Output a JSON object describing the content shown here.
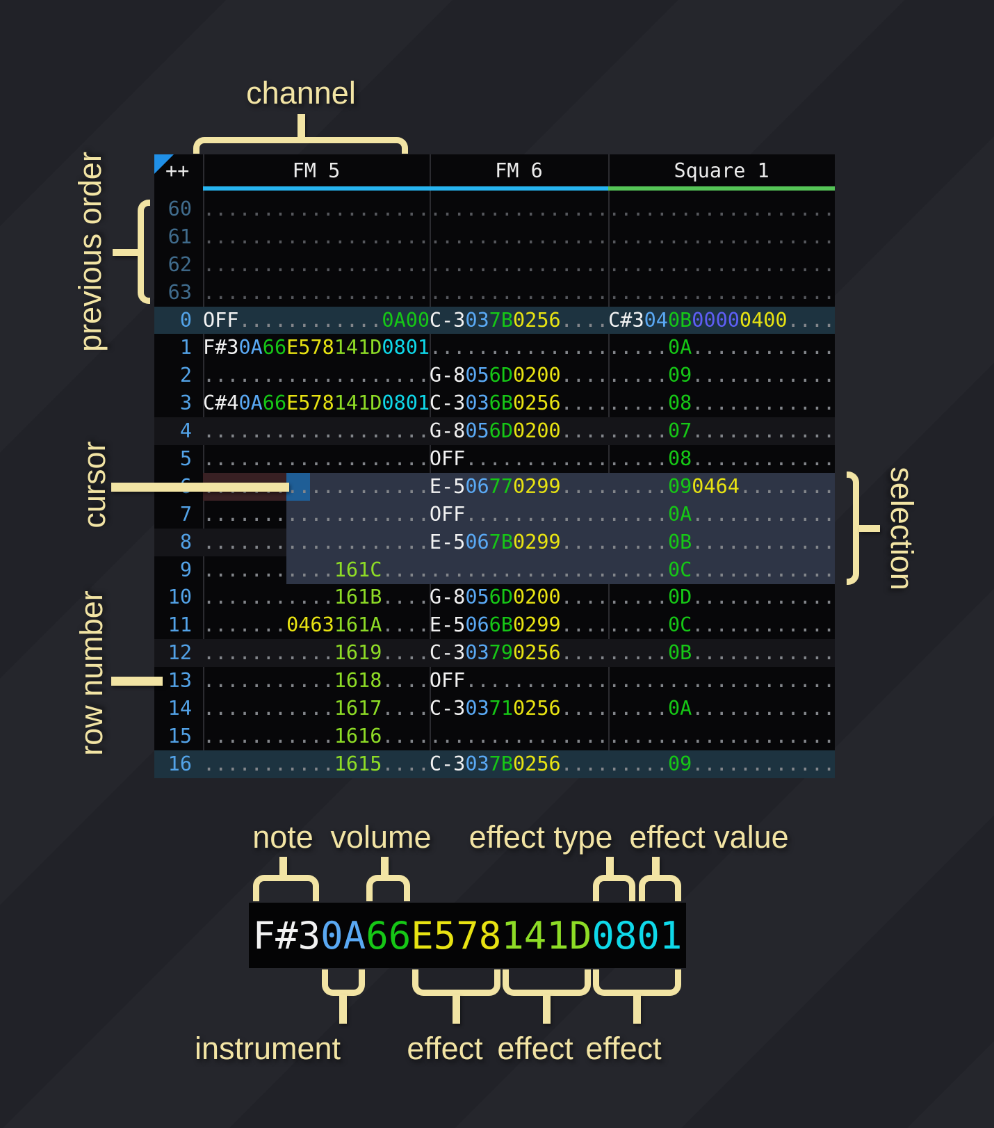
{
  "annotations": {
    "channel": "channel",
    "previous_order": "previous order",
    "cursor": "cursor",
    "row_number": "row number",
    "selection": "selection"
  },
  "header": {
    "corner": "++",
    "channels": [
      {
        "name": "FM 5",
        "underline": "#27b4f0"
      },
      {
        "name": "FM 6",
        "underline": "#27b4f0"
      },
      {
        "name": "Square 1",
        "underline": "#55c457"
      }
    ]
  },
  "colors": {
    "khaki": "#f2e4a4",
    "note": "#f2f2f2",
    "ins": "#5aa9f4",
    "vol": "#16c716",
    "pitch": "#e8e312",
    "chip": "#8edc26",
    "pan": "#0fd9ea",
    "arp": "#5e5ef6",
    "dot": "#83868b",
    "dim": "#56585d",
    "rownum": "#53a3e8",
    "rownum_prev": "#406c8d",
    "selection_bg": "#2e3546",
    "cursor_row_bg": "#382023",
    "cursor_bg": "#1f5e96",
    "hl4_bg": "#151519",
    "hl16_bg": "#1d3340"
  },
  "pattern": {
    "rows": [
      {
        "n": "60",
        "cls": "prev",
        "c": [
          [
            [
              "...................",
              "dim"
            ]
          ],
          [
            [
              "...............",
              "dim"
            ]
          ],
          [
            [
              "...................",
              "dim"
            ]
          ]
        ]
      },
      {
        "n": "61",
        "cls": "prev",
        "c": [
          [
            [
              "...................",
              "dim"
            ]
          ],
          [
            [
              "...............",
              "dim"
            ]
          ],
          [
            [
              "...................",
              "dim"
            ]
          ]
        ]
      },
      {
        "n": "62",
        "cls": "prev",
        "c": [
          [
            [
              "...................",
              "dim"
            ]
          ],
          [
            [
              "...............",
              "dim"
            ]
          ],
          [
            [
              "...................",
              "dim"
            ]
          ]
        ]
      },
      {
        "n": "63",
        "cls": "prev",
        "c": [
          [
            [
              "...................",
              "dim"
            ]
          ],
          [
            [
              "...............",
              "dim"
            ]
          ],
          [
            [
              "...................",
              "dim"
            ]
          ]
        ]
      },
      {
        "n": "0",
        "cls": "hl16",
        "c": [
          [
            [
              "OFF",
              "note"
            ],
            [
              "............",
              "dot"
            ],
            [
              "0A00",
              "vol"
            ]
          ],
          [
            [
              "C-3",
              "note"
            ],
            [
              "03",
              "ins"
            ],
            [
              "7B",
              "vol"
            ],
            [
              "0256",
              "pitch"
            ],
            [
              "....",
              "dot"
            ]
          ],
          [
            [
              "C#3",
              "note"
            ],
            [
              "04",
              "ins"
            ],
            [
              "0B",
              "vol"
            ],
            [
              "0000",
              "arp"
            ],
            [
              "0400",
              "pitch"
            ],
            [
              "....",
              "dot"
            ]
          ]
        ]
      },
      {
        "n": "1",
        "cls": "",
        "c": [
          [
            [
              "F#3",
              "note"
            ],
            [
              "0A",
              "ins"
            ],
            [
              "66",
              "vol"
            ],
            [
              "E578",
              "pitch"
            ],
            [
              "141D",
              "chip"
            ],
            [
              "0801",
              "pan"
            ]
          ],
          [
            [
              "...............",
              "dot"
            ]
          ],
          [
            [
              ".....",
              "dot"
            ],
            [
              "0A",
              "vol"
            ],
            [
              "............",
              "dot"
            ]
          ]
        ]
      },
      {
        "n": "2",
        "cls": "",
        "c": [
          [
            [
              "...................",
              "dot"
            ]
          ],
          [
            [
              "G-8",
              "note"
            ],
            [
              "05",
              "ins"
            ],
            [
              "6D",
              "vol"
            ],
            [
              "0200",
              "pitch"
            ],
            [
              "....",
              "dot"
            ]
          ],
          [
            [
              ".....",
              "dot"
            ],
            [
              "09",
              "vol"
            ],
            [
              "............",
              "dot"
            ]
          ]
        ]
      },
      {
        "n": "3",
        "cls": "",
        "c": [
          [
            [
              "C#4",
              "note"
            ],
            [
              "0A",
              "ins"
            ],
            [
              "66",
              "vol"
            ],
            [
              "E578",
              "pitch"
            ],
            [
              "141D",
              "chip"
            ],
            [
              "0801",
              "pan"
            ]
          ],
          [
            [
              "C-3",
              "note"
            ],
            [
              "03",
              "ins"
            ],
            [
              "6B",
              "vol"
            ],
            [
              "0256",
              "pitch"
            ],
            [
              "....",
              "dot"
            ]
          ],
          [
            [
              ".....",
              "dot"
            ],
            [
              "08",
              "vol"
            ],
            [
              "............",
              "dot"
            ]
          ]
        ]
      },
      {
        "n": "4",
        "cls": "hl4",
        "c": [
          [
            [
              "...................",
              "dot"
            ]
          ],
          [
            [
              "G-8",
              "note"
            ],
            [
              "05",
              "ins"
            ],
            [
              "6D",
              "vol"
            ],
            [
              "0200",
              "pitch"
            ],
            [
              "....",
              "dot"
            ]
          ],
          [
            [
              ".....",
              "dot"
            ],
            [
              "07",
              "vol"
            ],
            [
              "............",
              "dot"
            ]
          ]
        ]
      },
      {
        "n": "5",
        "cls": "",
        "c": [
          [
            [
              "...................",
              "dot"
            ]
          ],
          [
            [
              "OFF",
              "note"
            ],
            [
              "............",
              "dot"
            ]
          ],
          [
            [
              ".....",
              "dot"
            ],
            [
              "08",
              "vol"
            ],
            [
              "............",
              "dot"
            ]
          ]
        ]
      },
      {
        "n": "6",
        "cls": "",
        "c": [
          [
            [
              "...................",
              "dot"
            ]
          ],
          [
            [
              "E-5",
              "note"
            ],
            [
              "06",
              "ins"
            ],
            [
              "77",
              "vol"
            ],
            [
              "0299",
              "pitch"
            ],
            [
              "....",
              "dot"
            ]
          ],
          [
            [
              ".....",
              "dot"
            ],
            [
              "09",
              "vol"
            ],
            [
              "0464",
              "pitch"
            ],
            [
              "........",
              "dot"
            ]
          ]
        ]
      },
      {
        "n": "7",
        "cls": "",
        "c": [
          [
            [
              "...................",
              "dot"
            ]
          ],
          [
            [
              "OFF",
              "note"
            ],
            [
              "............",
              "dot"
            ]
          ],
          [
            [
              ".....",
              "dot"
            ],
            [
              "0A",
              "vol"
            ],
            [
              "............",
              "dot"
            ]
          ]
        ]
      },
      {
        "n": "8",
        "cls": "hl4",
        "c": [
          [
            [
              "...................",
              "dot"
            ]
          ],
          [
            [
              "E-5",
              "note"
            ],
            [
              "06",
              "ins"
            ],
            [
              "7B",
              "vol"
            ],
            [
              "0299",
              "pitch"
            ],
            [
              "....",
              "dot"
            ]
          ],
          [
            [
              ".....",
              "dot"
            ],
            [
              "0B",
              "vol"
            ],
            [
              "............",
              "dot"
            ]
          ]
        ]
      },
      {
        "n": "9",
        "cls": "",
        "c": [
          [
            [
              "...........",
              "dot"
            ],
            [
              "161C",
              "chip"
            ],
            [
              "....",
              "dot"
            ]
          ],
          [
            [
              "...............",
              "dot"
            ]
          ],
          [
            [
              ".....",
              "dot"
            ],
            [
              "0C",
              "vol"
            ],
            [
              "............",
              "dot"
            ]
          ]
        ]
      },
      {
        "n": "10",
        "cls": "",
        "c": [
          [
            [
              "...........",
              "dot"
            ],
            [
              "161B",
              "chip"
            ],
            [
              "....",
              "dot"
            ]
          ],
          [
            [
              "G-8",
              "note"
            ],
            [
              "05",
              "ins"
            ],
            [
              "6D",
              "vol"
            ],
            [
              "0200",
              "pitch"
            ],
            [
              "....",
              "dot"
            ]
          ],
          [
            [
              ".....",
              "dot"
            ],
            [
              "0D",
              "vol"
            ],
            [
              "............",
              "dot"
            ]
          ]
        ]
      },
      {
        "n": "11",
        "cls": "",
        "c": [
          [
            [
              ".......",
              "dot"
            ],
            [
              "0463",
              "pitch"
            ],
            [
              "161A",
              "chip"
            ],
            [
              "....",
              "dot"
            ]
          ],
          [
            [
              "E-5",
              "note"
            ],
            [
              "06",
              "ins"
            ],
            [
              "6B",
              "vol"
            ],
            [
              "0299",
              "pitch"
            ],
            [
              "....",
              "dot"
            ]
          ],
          [
            [
              ".....",
              "dot"
            ],
            [
              "0C",
              "vol"
            ],
            [
              "............",
              "dot"
            ]
          ]
        ]
      },
      {
        "n": "12",
        "cls": "hl4",
        "c": [
          [
            [
              "...........",
              "dot"
            ],
            [
              "1619",
              "chip"
            ],
            [
              "....",
              "dot"
            ]
          ],
          [
            [
              "C-3",
              "note"
            ],
            [
              "03",
              "ins"
            ],
            [
              "79",
              "vol"
            ],
            [
              "0256",
              "pitch"
            ],
            [
              "....",
              "dot"
            ]
          ],
          [
            [
              ".....",
              "dot"
            ],
            [
              "0B",
              "vol"
            ],
            [
              "............",
              "dot"
            ]
          ]
        ]
      },
      {
        "n": "13",
        "cls": "",
        "c": [
          [
            [
              "...........",
              "dot"
            ],
            [
              "1618",
              "chip"
            ],
            [
              "....",
              "dot"
            ]
          ],
          [
            [
              "OFF",
              "note"
            ],
            [
              "............",
              "dot"
            ]
          ],
          [
            [
              "...................",
              "dot"
            ]
          ]
        ]
      },
      {
        "n": "14",
        "cls": "",
        "c": [
          [
            [
              "...........",
              "dot"
            ],
            [
              "1617",
              "chip"
            ],
            [
              "....",
              "dot"
            ]
          ],
          [
            [
              "C-3",
              "note"
            ],
            [
              "03",
              "ins"
            ],
            [
              "71",
              "vol"
            ],
            [
              "0256",
              "pitch"
            ],
            [
              "....",
              "dot"
            ]
          ],
          [
            [
              ".....",
              "dot"
            ],
            [
              "0A",
              "vol"
            ],
            [
              "............",
              "dot"
            ]
          ]
        ]
      },
      {
        "n": "15",
        "cls": "",
        "c": [
          [
            [
              "...........",
              "dot"
            ],
            [
              "1616",
              "chip"
            ],
            [
              "....",
              "dot"
            ]
          ],
          [
            [
              "...............",
              "dot"
            ]
          ],
          [
            [
              "...................",
              "dot"
            ]
          ]
        ]
      },
      {
        "n": "16",
        "cls": "hl16",
        "c": [
          [
            [
              "...........",
              "dot"
            ],
            [
              "1615",
              "chip"
            ],
            [
              "....",
              "dot"
            ]
          ],
          [
            [
              "C-3",
              "note"
            ],
            [
              "03",
              "ins"
            ],
            [
              "7B",
              "vol"
            ],
            [
              "0256",
              "pitch"
            ],
            [
              "....",
              "dot"
            ]
          ],
          [
            [
              ".....",
              "dot"
            ],
            [
              "09",
              "vol"
            ],
            [
              "............",
              "dot"
            ]
          ]
        ]
      }
    ]
  },
  "breakdown": {
    "cell": [
      [
        "F#3",
        "note"
      ],
      [
        "0A",
        "ins"
      ],
      [
        "66",
        "vol"
      ],
      [
        "E578",
        "pitch"
      ],
      [
        "141D",
        "chip"
      ],
      [
        "0801",
        "pan"
      ]
    ],
    "top_labels": [
      "note",
      "volume",
      "effect type",
      "effect value"
    ],
    "bottom_labels": [
      "instrument",
      "effect",
      "effect",
      "effect"
    ]
  }
}
